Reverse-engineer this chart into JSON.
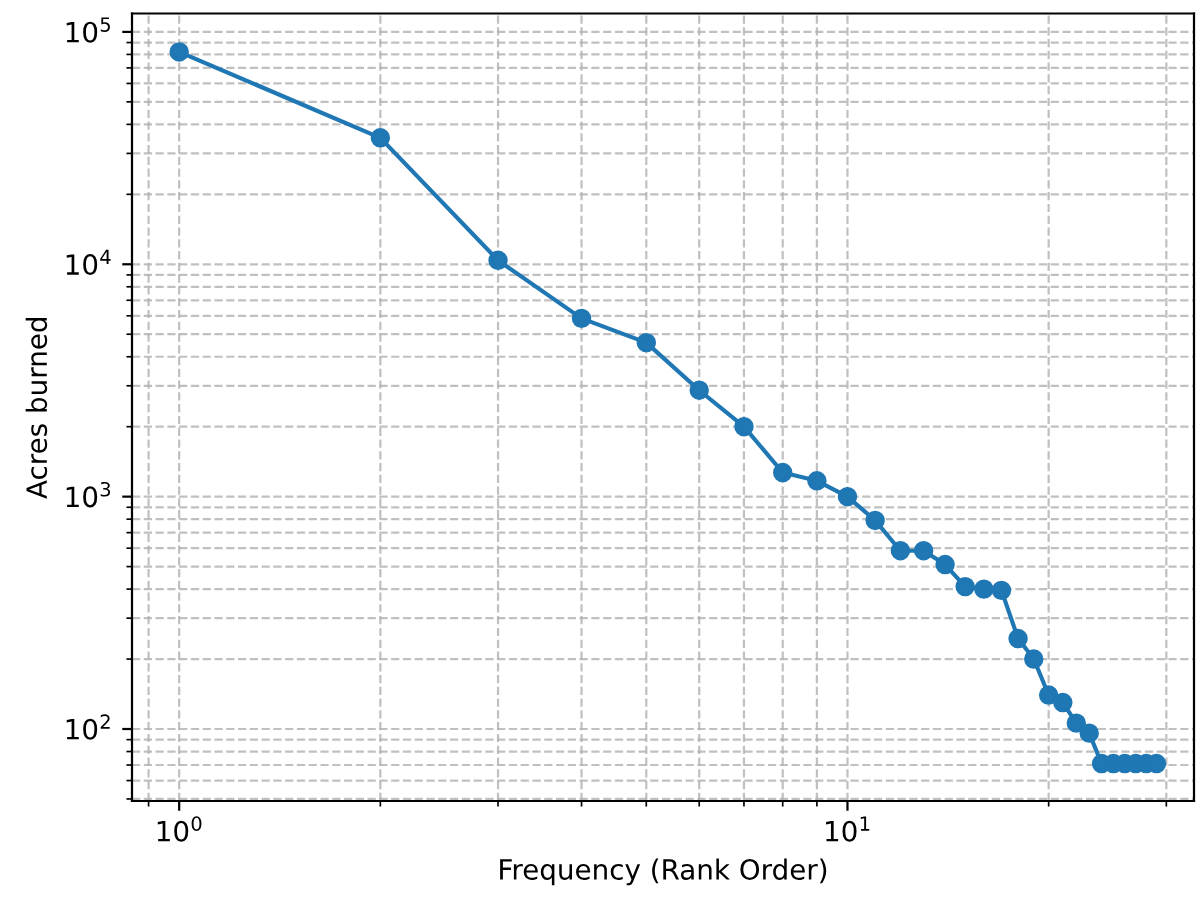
{
  "chart_data": {
    "type": "line",
    "xlabel": "Frequency (Rank Order)",
    "ylabel": "Acres burned",
    "log": "xy",
    "x": [
      1,
      2,
      3,
      4,
      5,
      6,
      7,
      8,
      9,
      10,
      11,
      12,
      13,
      14,
      15,
      16,
      17,
      18,
      19,
      20,
      21,
      22,
      23,
      24,
      25,
      26,
      27,
      28,
      29
    ],
    "series": [
      {
        "color": "#1f77b4",
        "values": [
          82000,
          35000,
          10400,
          5850,
          4600,
          2870,
          2000,
          1270,
          1170,
          1000,
          790,
          585,
          585,
          510,
          410,
          400,
          395,
          245,
          200,
          140,
          130,
          106,
          96,
          71,
          71,
          71,
          71,
          71,
          71
        ]
      }
    ],
    "xlim": [
      0.85,
      33
    ],
    "ylim": [
      49,
      120000
    ],
    "xticks": [
      {
        "value": 1,
        "label": "10$^{0}$"
      },
      {
        "value": 10,
        "label": "10$^{1}$"
      }
    ],
    "yticks": [
      {
        "value": 100,
        "label": "10$^{2}$"
      },
      {
        "value": 1000,
        "label": "10$^{3}$"
      },
      {
        "value": 10000,
        "label": "10$^{4}$"
      },
      {
        "value": 100000,
        "label": "10$^{5}$"
      }
    ],
    "grid": true,
    "marker": "circle",
    "line_style": "solid"
  }
}
